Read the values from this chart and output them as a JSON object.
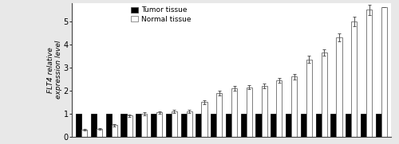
{
  "n_samples": 21,
  "tumor_values": [
    1.0,
    1.0,
    1.0,
    1.0,
    1.0,
    1.0,
    1.0,
    1.0,
    1.0,
    1.0,
    1.0,
    1.0,
    1.0,
    1.0,
    1.0,
    1.0,
    1.0,
    1.0,
    1.0,
    1.0,
    1.0
  ],
  "normal_values": [
    0.3,
    0.35,
    0.5,
    0.92,
    1.0,
    1.05,
    1.1,
    1.1,
    1.5,
    1.9,
    2.1,
    2.15,
    2.2,
    2.45,
    2.6,
    3.35,
    3.65,
    4.3,
    5.0,
    5.5,
    5.6
  ],
  "normal_errors": [
    0.04,
    0.04,
    0.04,
    0.06,
    0.06,
    0.06,
    0.06,
    0.06,
    0.08,
    0.1,
    0.1,
    0.1,
    0.1,
    0.1,
    0.12,
    0.15,
    0.15,
    0.18,
    0.2,
    0.22,
    0.0
  ],
  "tumor_color": "#000000",
  "normal_color": "#ffffff",
  "normal_edge_color": "#666666",
  "ylabel": "FLT4 relative\nexpression level",
  "ylim": [
    0,
    5.8
  ],
  "yticks": [
    0,
    1,
    2,
    3,
    4,
    5
  ],
  "legend_tumor": "Tumor tissue",
  "legend_normal": "Normal tissue",
  "bar_width": 0.38,
  "figsize": [
    5.0,
    1.81
  ],
  "dpi": 100,
  "background_color": "#e8e8e8",
  "plot_bg_color": "#ffffff"
}
